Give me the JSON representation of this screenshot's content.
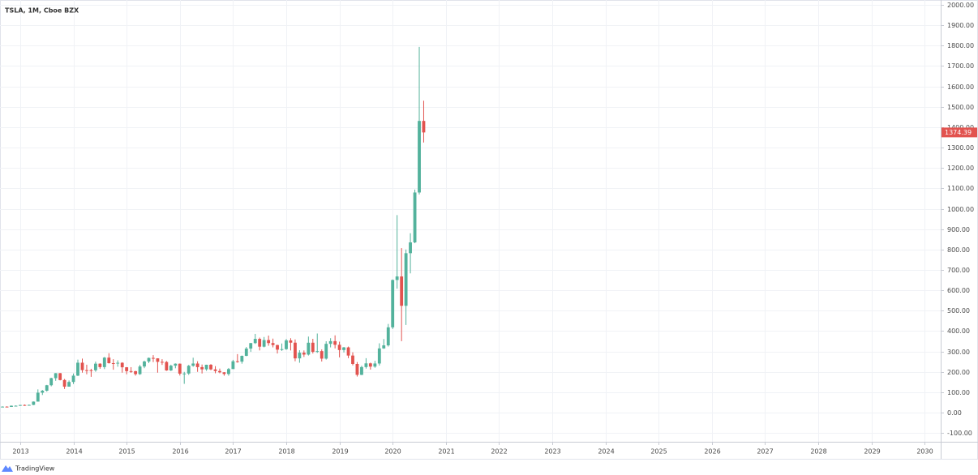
{
  "chart_data": {
    "type": "candlestick",
    "title": "TSLA, 1M, Cboe BZX",
    "up_color": "#53b29c",
    "down_color": "#e2534f",
    "grid": true,
    "x": [
      2012.583,
      2012.667,
      2012.75,
      2012.833,
      2012.917,
      2013.0,
      2013.083,
      2013.167,
      2013.25,
      2013.333,
      2013.417,
      2013.5,
      2013.583,
      2013.667,
      2013.75,
      2013.833,
      2013.917,
      2014.0,
      2014.083,
      2014.167,
      2014.25,
      2014.333,
      2014.417,
      2014.5,
      2014.583,
      2014.667,
      2014.75,
      2014.833,
      2014.917,
      2015.0,
      2015.083,
      2015.167,
      2015.25,
      2015.333,
      2015.417,
      2015.5,
      2015.583,
      2015.667,
      2015.75,
      2015.833,
      2015.917,
      2016.0,
      2016.083,
      2016.167,
      2016.25,
      2016.333,
      2016.417,
      2016.5,
      2016.583,
      2016.667,
      2016.75,
      2016.833,
      2016.917,
      2017.0,
      2017.083,
      2017.167,
      2017.25,
      2017.333,
      2017.417,
      2017.5,
      2017.583,
      2017.667,
      2017.75,
      2017.833,
      2017.917,
      2018.0,
      2018.083,
      2018.167,
      2018.25,
      2018.333,
      2018.417,
      2018.5,
      2018.583,
      2018.667,
      2018.75,
      2018.833,
      2018.917,
      2019.0,
      2019.083,
      2019.167,
      2019.25,
      2019.333,
      2019.417,
      2019.5,
      2019.583,
      2019.667,
      2019.75,
      2019.833,
      2019.917,
      2020.0,
      2020.083,
      2020.167,
      2020.25,
      2020.333,
      2020.417,
      2020.5,
      2020.583
    ],
    "open": [
      29.5,
      28.5,
      29.3,
      28.1,
      33.8,
      33.9,
      37.5,
      35.0,
      37.9,
      54.0,
      97.8,
      107.5,
      134.3,
      169.0,
      193.4,
      159.9,
      127.3,
      150.4,
      181.4,
      244.8,
      208.4,
      207.9,
      207.8,
      240.1,
      223.3,
      269.7,
      242.7,
      241.7,
      244.5,
      222.4,
      203.6,
      203.3,
      188.8,
      226.1,
      250.8,
      268.3,
      266.2,
      249.1,
      248.4,
      206.9,
      230.3,
      240.0,
      191.2,
      191.9,
      229.8,
      240.8,
      223.2,
      212.3,
      234.8,
      212.0,
      204.0,
      197.7,
      189.4,
      213.7,
      251.9,
      250.0,
      278.3,
      314.1,
      341.0,
      361.6,
      323.5,
      355.9,
      341.1,
      331.5,
      308.9,
      311.4,
      354.3,
      343.1,
      266.1,
      293.9,
      284.7,
      342.9,
      298.1,
      301.7,
      264.8,
      337.3,
      350.5,
      332.8,
      307.0,
      319.9,
      279.9,
      238.7,
      185.2,
      223.5,
      241.6,
      225.6,
      240.9,
      314.9,
      329.9,
      418.3,
      650.6,
      667.9,
      524.0,
      782.0,
      835.0,
      1079.8,
      1430.8
    ],
    "high": [
      30.5,
      30.9,
      31.0,
      35.0,
      35.2,
      38.0,
      40.0,
      39.5,
      55.0,
      114.0,
      111.0,
      136.0,
      171.0,
      194.0,
      194.5,
      165.0,
      157.9,
      192.0,
      260.0,
      265.0,
      235.0,
      215.0,
      250.0,
      242.0,
      273.0,
      291.4,
      262.0,
      256.5,
      247.0,
      223.2,
      223.0,
      205.0,
      234.0,
      255.0,
      270.0,
      282.0,
      266.7,
      262.0,
      253.0,
      235.0,
      241.6,
      241.0,
      200.0,
      234.0,
      269.3,
      252.0,
      236.0,
      235.0,
      238.0,
      228.0,
      216.0,
      199.0,
      219.0,
      259.0,
      287.0,
      280.0,
      322.0,
      342.0,
      386.0,
      368.0,
      371.0,
      378.0,
      363.0,
      333.0,
      339.0,
      361.0,
      365.0,
      359.0,
      306.0,
      305.0,
      373.0,
      362.0,
      388.0,
      310.0,
      350.0,
      365.0,
      379.0,
      348.0,
      322.0,
      324.0,
      296.0,
      248.0,
      230.0,
      267.0,
      245.0,
      254.0,
      340.0,
      361.0,
      435.0,
      653.0,
      968.9,
      807.0,
      800.0,
      880.0,
      1094.0,
      1794.0,
      1530.0
    ],
    "low": [
      26.6,
      27.5,
      26.7,
      27.8,
      32.4,
      33.0,
      33.2,
      34.0,
      36.6,
      54.0,
      86.5,
      103.0,
      129.0,
      156.0,
      158.0,
      116.1,
      128.0,
      140.2,
      179.3,
      196.0,
      188.0,
      175.6,
      200.5,
      215.0,
      213.5,
      240.5,
      210.5,
      225.0,
      196.0,
      188.0,
      195.0,
      181.4,
      185.0,
      218.0,
      243.0,
      248.0,
      196.0,
      234.0,
      205.0,
      204.0,
      217.5,
      182.0,
      141.1,
      185.0,
      225.0,
      200.0,
      192.0,
      205.0,
      208.0,
      193.0,
      193.0,
      181.0,
      181.0,
      214.0,
      245.0,
      240.0,
      277.0,
      298.0,
      337.0,
      305.0,
      320.0,
      328.0,
      320.0,
      290.0,
      303.0,
      308.0,
      305.0,
      252.0,
      244.6,
      273.0,
      280.0,
      290.0,
      293.0,
      250.6,
      260.0,
      320.0,
      315.0,
      271.0,
      295.0,
      267.0,
      232.0,
      176.9,
      184.0,
      216.0,
      211.0,
      220.0,
      231.0,
      313.0,
      324.0,
      410.0,
      608.0,
      350.5,
      430.0,
      683.0,
      831.0,
      1070.0,
      1325.0
    ],
    "close": [
      28.5,
      29.3,
      28.1,
      33.8,
      33.9,
      37.5,
      35.0,
      37.9,
      54.0,
      97.8,
      107.5,
      134.3,
      169.0,
      193.4,
      159.9,
      127.3,
      150.4,
      181.4,
      244.8,
      208.4,
      207.9,
      207.8,
      240.1,
      223.3,
      269.7,
      242.7,
      241.7,
      244.5,
      222.4,
      203.6,
      203.3,
      188.8,
      226.1,
      250.8,
      268.3,
      266.2,
      249.1,
      248.4,
      206.9,
      230.3,
      240.0,
      191.2,
      191.9,
      229.8,
      240.8,
      223.2,
      212.3,
      234.8,
      212.0,
      204.0,
      197.7,
      189.4,
      213.7,
      251.9,
      250.0,
      278.3,
      314.1,
      341.0,
      361.6,
      323.5,
      355.9,
      341.1,
      331.5,
      308.9,
      311.4,
      354.3,
      343.1,
      266.1,
      293.9,
      284.7,
      342.9,
      298.1,
      301.7,
      264.8,
      337.3,
      350.5,
      332.8,
      307.0,
      319.9,
      279.9,
      238.7,
      185.2,
      223.5,
      241.6,
      225.6,
      240.9,
      314.9,
      329.9,
      418.3,
      650.6,
      667.9,
      524.0,
      782.0,
      835.0,
      1079.8,
      1430.8,
      1374.39
    ],
    "xlim": [
      2012.62,
      2030.3
    ],
    "xticks": [
      2013,
      2014,
      2015,
      2016,
      2017,
      2018,
      2019,
      2020,
      2021,
      2022,
      2023,
      2024,
      2025,
      2026,
      2027,
      2028,
      2029,
      2030
    ],
    "ylim": [
      -143,
      2024
    ],
    "yticks": [
      {
        "value": 2000,
        "label": "2000.00"
      },
      {
        "value": 1900,
        "label": "1900.00"
      },
      {
        "value": 1800,
        "label": "1800.00"
      },
      {
        "value": 1700,
        "label": "1700.00"
      },
      {
        "value": 1600,
        "label": "1600.00"
      },
      {
        "value": 1500,
        "label": "1500.00"
      },
      {
        "value": 1400,
        "label": "1400.00"
      },
      {
        "value": 1300,
        "label": "1300.00"
      },
      {
        "value": 1200,
        "label": "1200.00"
      },
      {
        "value": 1100,
        "label": "1100.00"
      },
      {
        "value": 1000,
        "label": "1000.00"
      },
      {
        "value": 900,
        "label": "900.00"
      },
      {
        "value": 800,
        "label": "800.00"
      },
      {
        "value": 700,
        "label": "700.00"
      },
      {
        "value": 600,
        "label": "600.00"
      },
      {
        "value": 500,
        "label": "500.00"
      },
      {
        "value": 400,
        "label": "400.00"
      },
      {
        "value": 300,
        "label": "300.00"
      },
      {
        "value": 200,
        "label": "200.00"
      },
      {
        "value": 100,
        "label": "100.00"
      },
      {
        "value": 0,
        "label": "0.00"
      },
      {
        "value": -100,
        "label": "-100.00"
      }
    ]
  },
  "footer": {
    "brand": "TradingView"
  }
}
